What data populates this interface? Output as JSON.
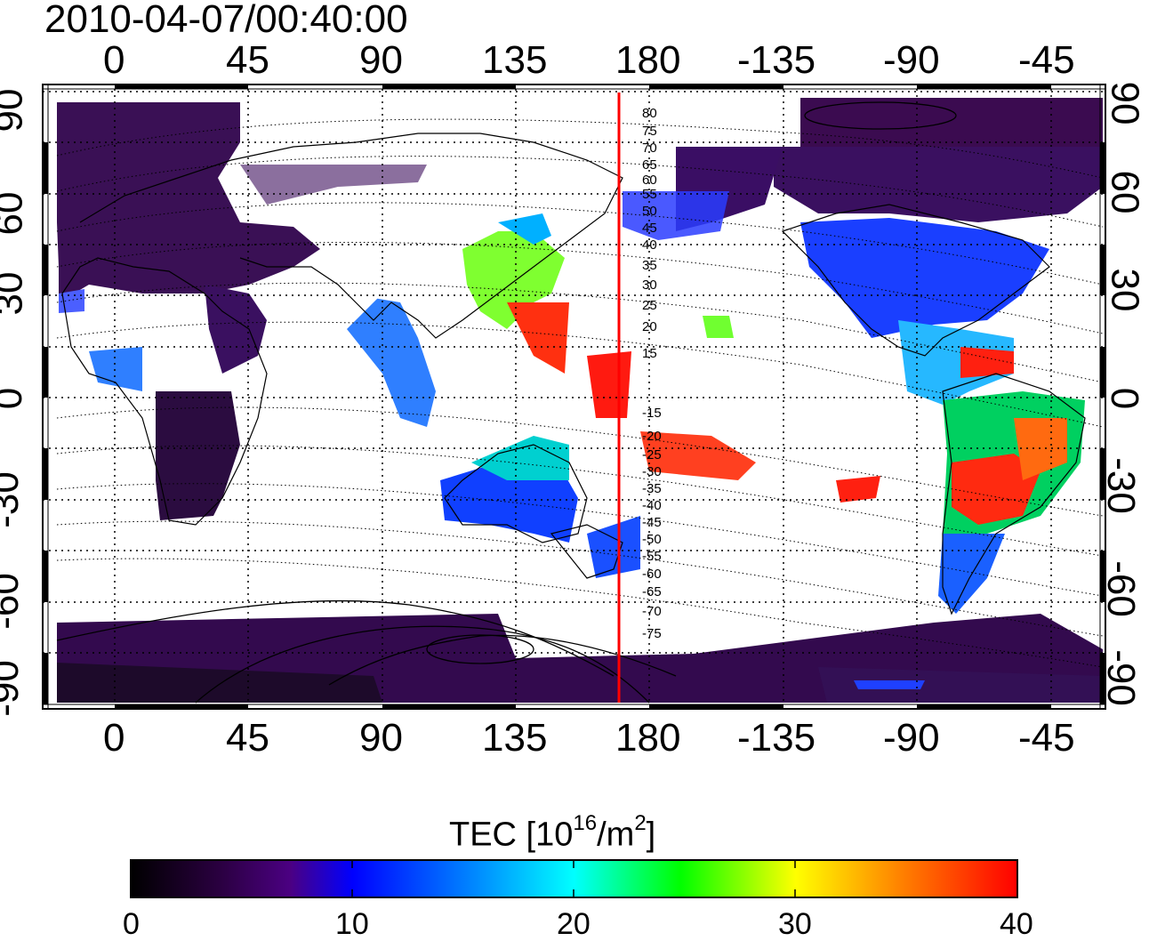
{
  "map": {
    "title": "2010-04-07/00:40:00",
    "top_lon_ticks": [
      "0",
      "45",
      "90",
      "135",
      "180",
      "-135",
      "-90",
      "-45"
    ],
    "bottom_lon_ticks": [
      "0",
      "45",
      "90",
      "135",
      "180",
      "-135",
      "-90",
      "-45"
    ],
    "left_lat_ticks": [
      "90",
      "60",
      "30",
      "0",
      "-30",
      "-60",
      "-90"
    ],
    "right_lat_ticks": [
      "90",
      "60",
      "30",
      "0",
      "-30",
      "-60",
      "-90"
    ],
    "marker_meridian_lon": 170,
    "marker_color": "#ff0000",
    "contour_labels": [
      "80",
      "75",
      "70",
      "65",
      "60",
      "55",
      "50",
      "45",
      "40",
      "35",
      "30",
      "25",
      "20",
      "15",
      "-15",
      "-20",
      "-25",
      "-30",
      "-35",
      "-40",
      "-45",
      "-50",
      "-55",
      "-60",
      "-65",
      "-70",
      "-75"
    ]
  },
  "colorbar": {
    "title_main": "TEC  [10",
    "title_exp1": "16",
    "title_mid": "/m",
    "title_exp2": "2",
    "title_end": "]",
    "ticks": [
      "0",
      "10",
      "20",
      "30",
      "40"
    ],
    "range": [
      0,
      40
    ],
    "colors": [
      "#000000",
      "#4b0082",
      "#0000ff",
      "#00ffff",
      "#00ff00",
      "#ffff00",
      "#ff0000"
    ]
  }
}
